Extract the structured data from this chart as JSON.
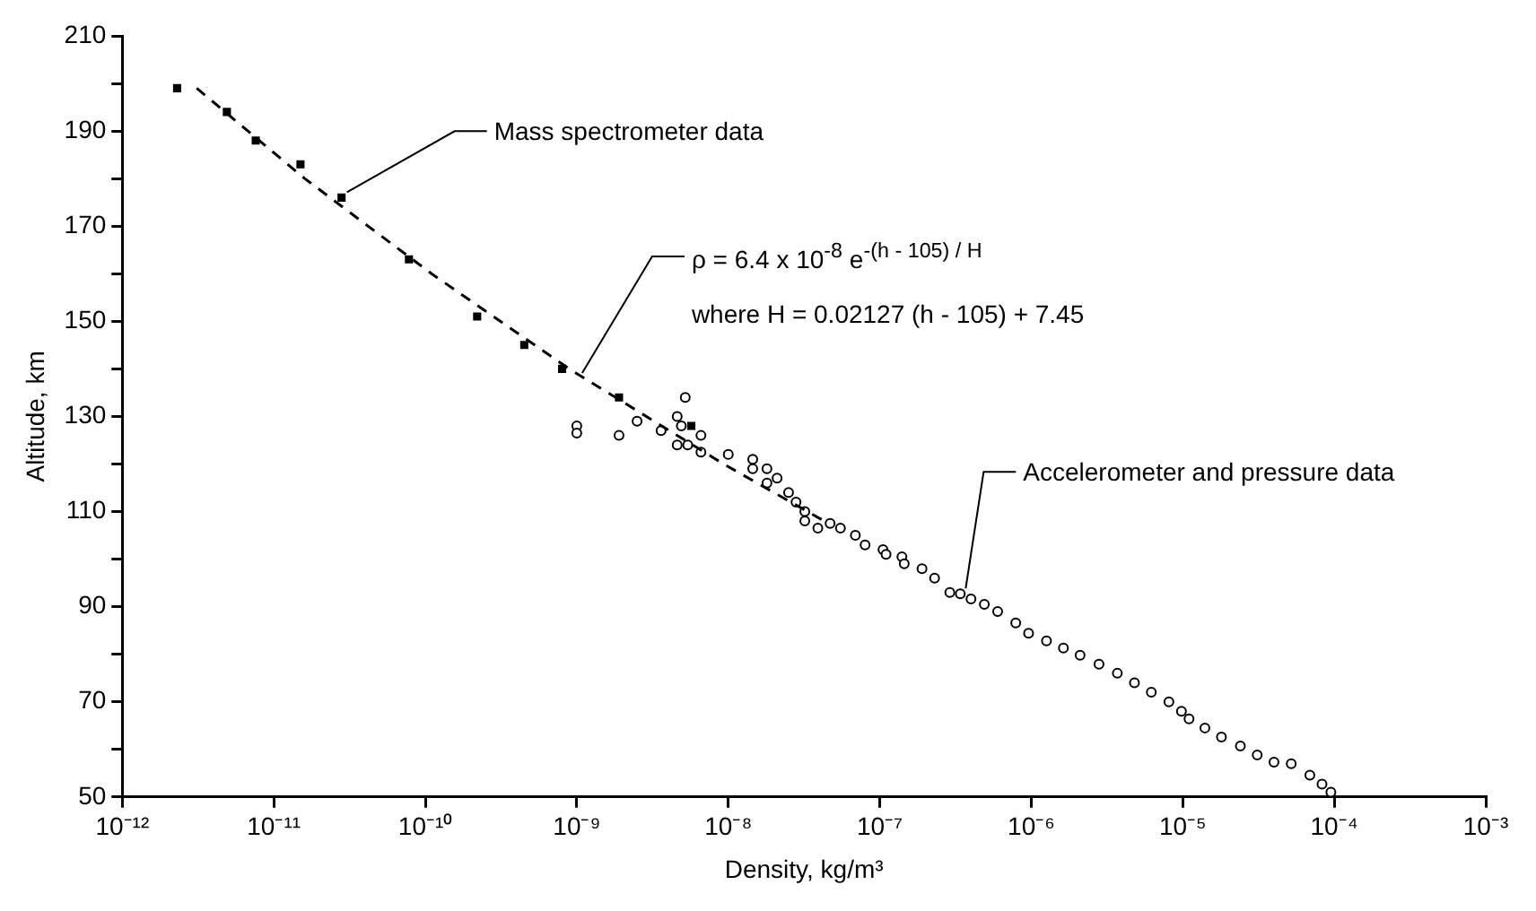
{
  "chart_data": {
    "type": "scatter",
    "xlabel": "Density, kg/m³",
    "ylabel": "Altitude, km",
    "log": "x",
    "grid": false,
    "legend": false,
    "xlim": [
      1e-12,
      0.001
    ],
    "xticks": [
      {
        "value": 1e-12,
        "label": "10⁻¹²"
      },
      {
        "value": 1e-11,
        "label": "10⁻¹¹"
      },
      {
        "value": 1e-10,
        "label": "10⁻¹⁰"
      },
      {
        "value": 1e-09,
        "label": "10⁻⁹"
      },
      {
        "value": 1e-08,
        "label": "10⁻⁸"
      },
      {
        "value": 1e-07,
        "label": "10⁻⁷"
      },
      {
        "value": 1e-06,
        "label": "10⁻⁶"
      },
      {
        "value": 1e-05,
        "label": "10⁻⁵"
      },
      {
        "value": 0.0001,
        "label": "10⁻⁴"
      },
      {
        "value": 0.001,
        "label": "10⁻³"
      }
    ],
    "ylim": [
      50,
      210
    ],
    "yticks": [
      50,
      {
        "value": 60,
        "label": null
      },
      70,
      {
        "value": 80,
        "label": null
      },
      90,
      {
        "value": 100,
        "label": null
      },
      110,
      {
        "value": 120,
        "label": null
      },
      130,
      {
        "value": 140,
        "label": null
      },
      150,
      {
        "value": 160,
        "label": null
      },
      170,
      {
        "value": 180,
        "label": null
      },
      190,
      {
        "value": 200,
        "label": null
      },
      210
    ],
    "annotations": [
      {
        "text": "Mass spectrometer data",
        "x": 2.8e-11,
        "y": 176
      },
      {
        "text": "ρ = 6.4 x 10$^{-8}$ e$^{-(h - 105) / H}$",
        "x": 1e-09,
        "y": 138
      },
      "where H = 0.02127 (h - 105) + 7.45",
      {
        "text": "Accelerometer and pressure data",
        "x": 3.4e-07,
        "y": 92.7
      }
    ],
    "series": [
      {
        "type": "line",
        "color": "#000000",
        "marker": "none",
        "line_style": "dashed",
        "x": [
          3.1e-12,
          1.6e-11,
          1.1e-10,
          8.9e-10,
          9.3e-09,
          4.3e-08
        ],
        "values": [
          199,
          180,
          160,
          140,
          120,
          108
        ]
      },
      {
        "color": "#000000",
        "marker": "square",
        "x": [
          2.3e-12,
          4.9e-12,
          7.6e-12,
          1.5e-11,
          2.8e-11,
          7.8e-11,
          2.2e-10,
          4.5e-10,
          8e-10,
          1.9e-09,
          5.7e-09
        ],
        "values": [
          199,
          194,
          188,
          183,
          176,
          163,
          151,
          145,
          140,
          134,
          128
        ]
      },
      {
        "color": "#000000",
        "marker": "circle",
        "x": [
          1e-09,
          1e-09,
          1.9e-09,
          2.5e-09,
          3.6e-09,
          4.6e-09,
          4.6e-09,
          5.2e-09,
          4.9e-09,
          5.4e-09,
          6.6e-09,
          6.6e-09,
          1e-08,
          1.45e-08,
          1.45e-08,
          1.8e-08,
          1.8e-08,
          2.1e-08,
          2.5e-08,
          2.8e-08,
          3.2e-08,
          3.2e-08,
          3.9e-08,
          4.7e-08,
          5.5e-08,
          6.9e-08,
          8e-08,
          1.05e-07,
          1.1e-07,
          1.4e-07,
          1.45e-07,
          1.9e-07,
          2.3e-07,
          2.9e-07,
          3.4e-07,
          4e-07,
          4.9e-07,
          6e-07,
          7.9e-07,
          9.6e-07,
          1.26e-06,
          1.63e-06,
          2.1e-06,
          2.8e-06,
          3.7e-06,
          4.8e-06,
          6.2e-06,
          8.1e-06,
          9.8e-06,
          1.1e-05,
          1.4e-05,
          1.8e-05,
          2.4e-05,
          3.1e-05,
          4e-05,
          5.2e-05,
          6.9e-05,
          8.3e-05,
          9.5e-05
        ],
        "values": [
          128,
          126.5,
          126,
          129,
          127,
          124,
          130,
          134,
          128,
          124,
          126,
          122.5,
          122,
          121,
          119,
          119,
          116,
          117,
          114,
          112,
          110,
          108,
          106.5,
          107.5,
          106.5,
          105,
          103,
          102,
          101,
          100.5,
          99,
          98,
          96,
          93,
          92.7,
          91.6,
          90.5,
          89,
          86.6,
          84.4,
          82.8,
          81.3,
          79.8,
          77.9,
          76,
          74,
          72,
          70,
          68,
          66.4,
          64.5,
          62.6,
          60.7,
          58.8,
          57.3,
          57,
          54.6,
          52.7,
          51
        ]
      }
    ]
  }
}
